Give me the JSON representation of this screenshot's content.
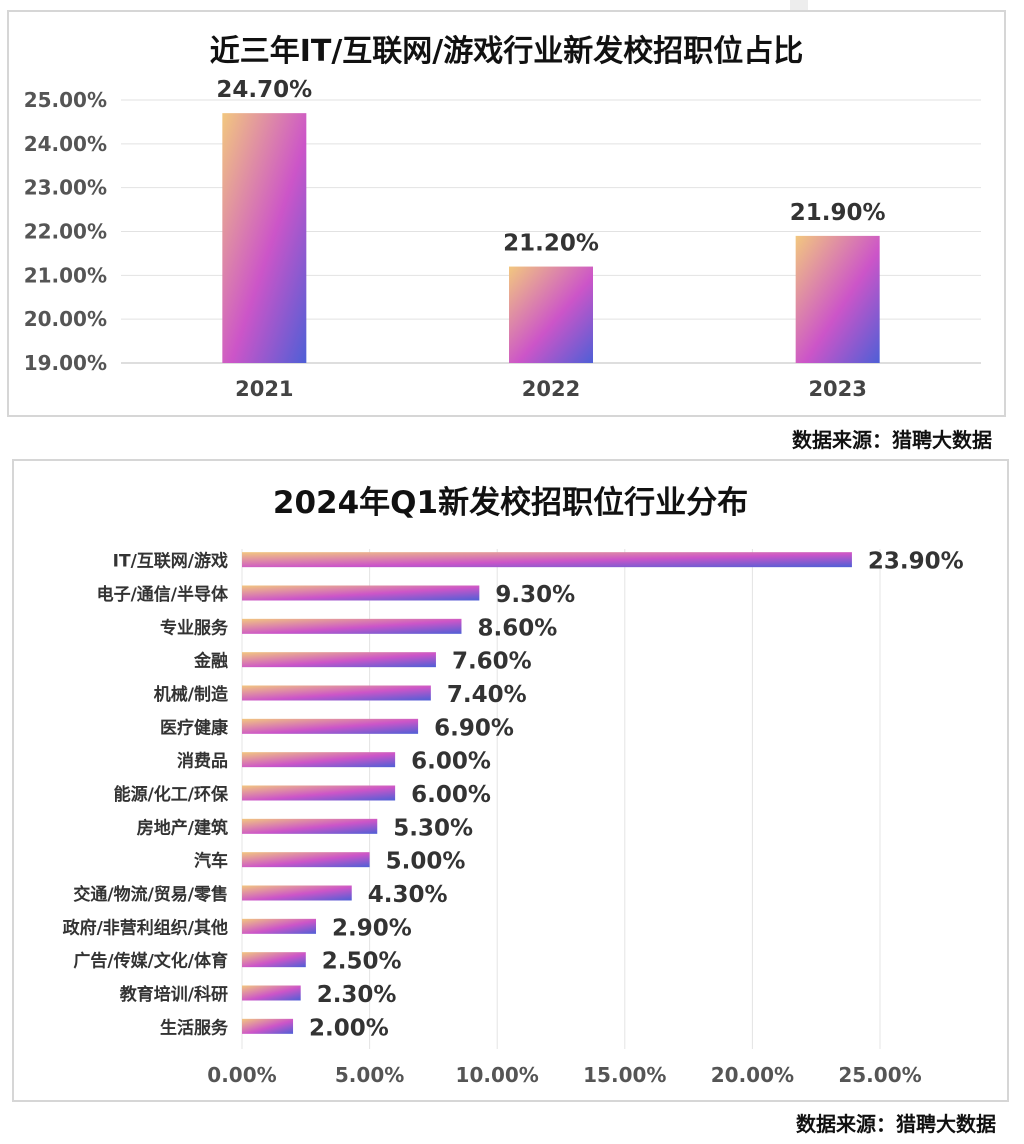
{
  "chart_data": [
    {
      "type": "bar",
      "title": "近三年IT/互联网/游戏行业新发校招职位占比",
      "categories": [
        "2021",
        "2022",
        "2023"
      ],
      "values": [
        24.7,
        21.2,
        21.9
      ],
      "value_labels": [
        "24.70%",
        "21.20%",
        "21.90%"
      ],
      "ylim": [
        19,
        25
      ],
      "yticks": [
        19,
        20,
        21,
        22,
        23,
        24,
        25
      ],
      "ytick_labels": [
        "19.00%",
        "20.00%",
        "21.00%",
        "22.00%",
        "23.00%",
        "24.00%",
        "25.00%"
      ],
      "grid": true,
      "legend": "none",
      "colors": {
        "gradient_start": "#f2c77f",
        "gradient_mid": "#cc55c8",
        "gradient_end": "#4e5fd6"
      }
    },
    {
      "type": "bar",
      "orientation": "horizontal",
      "title": "2024年Q1新发校招职位行业分布",
      "categories": [
        "IT/互联网/游戏",
        "电子/通信/半导体",
        "专业服务",
        "金融",
        "机械/制造",
        "医疗健康",
        "消费品",
        "能源/化工/环保",
        "房地产/建筑",
        "汽车",
        "交通/物流/贸易/零售",
        "政府/非营利组织/其他",
        "广告/传媒/文化/体育",
        "教育培训/科研",
        "生活服务"
      ],
      "values": [
        23.9,
        9.3,
        8.6,
        7.6,
        7.4,
        6.9,
        6.0,
        6.0,
        5.3,
        5.0,
        4.3,
        2.9,
        2.5,
        2.3,
        2.0
      ],
      "value_labels": [
        "23.90%",
        "9.30%",
        "8.60%",
        "7.60%",
        "7.40%",
        "6.90%",
        "6.00%",
        "6.00%",
        "5.30%",
        "5.00%",
        "4.30%",
        "2.90%",
        "2.50%",
        "2.30%",
        "2.00%"
      ],
      "xlim": [
        0,
        25
      ],
      "xticks": [
        0,
        5,
        10,
        15,
        20,
        25
      ],
      "xtick_labels": [
        "0.00%",
        "5.00%",
        "10.00%",
        "15.00%",
        "20.00%",
        "25.00%"
      ],
      "grid": true,
      "legend": "none",
      "colors": {
        "gradient_start": "#f2c77f",
        "gradient_mid": "#cc55c8",
        "gradient_end": "#4e5fd6"
      }
    }
  ],
  "sources": [
    "数据来源：猎聘大数据",
    "数据来源：猎聘大数据"
  ]
}
